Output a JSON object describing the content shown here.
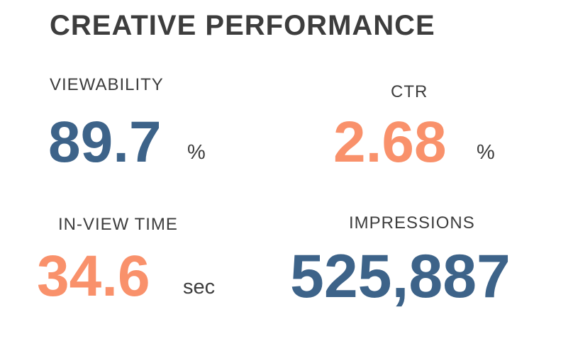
{
  "title": "CREATIVE PERFORMANCE",
  "metrics": {
    "viewability": {
      "label": "VIEWABILITY",
      "value": "89.7",
      "unit": "%"
    },
    "ctr": {
      "label": "CTR",
      "value": "2.68",
      "unit": "%"
    },
    "in_view_time": {
      "label": "IN-VIEW TIME",
      "value": "34.6",
      "unit": "sec"
    },
    "impressions": {
      "label": "IMPRESSIONS",
      "value": "525,887"
    }
  },
  "colors": {
    "blue": "#3d6389",
    "orange": "#f9916b",
    "text": "#3d3d3d",
    "background": "#ffffff"
  }
}
